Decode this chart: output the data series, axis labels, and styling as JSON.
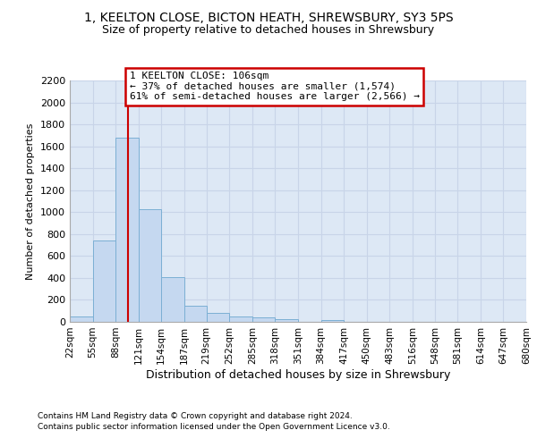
{
  "title_line1": "1, KEELTON CLOSE, BICTON HEATH, SHREWSBURY, SY3 5PS",
  "title_line2": "Size of property relative to detached houses in Shrewsbury",
  "xlabel": "Distribution of detached houses by size in Shrewsbury",
  "ylabel": "Number of detached properties",
  "footer_line1": "Contains HM Land Registry data © Crown copyright and database right 2024.",
  "footer_line2": "Contains public sector information licensed under the Open Government Licence v3.0.",
  "annotation_line1": "1 KEELTON CLOSE: 106sqm",
  "annotation_line2": "← 37% of detached houses are smaller (1,574)",
  "annotation_line3": "61% of semi-detached houses are larger (2,566) →",
  "bin_edges": [
    22,
    55,
    88,
    121,
    154,
    187,
    219,
    252,
    285,
    318,
    351,
    384,
    417,
    450,
    483,
    516,
    548,
    581,
    614,
    647,
    680
  ],
  "bar_heights": [
    50,
    740,
    1680,
    1030,
    405,
    150,
    80,
    45,
    40,
    25,
    0,
    20,
    0,
    0,
    0,
    0,
    0,
    0,
    0,
    0
  ],
  "bar_color": "#c5d8f0",
  "bar_edge_color": "#7bafd4",
  "vline_color": "#cc0000",
  "vline_x": 106,
  "ylim_max": 2200,
  "yticks": [
    0,
    200,
    400,
    600,
    800,
    1000,
    1200,
    1400,
    1600,
    1800,
    2000,
    2200
  ],
  "grid_color": "#c8d4e8",
  "bg_color": "#dde8f5",
  "annotation_box_edgecolor": "#cc0000",
  "title1_fontsize": 10,
  "title2_fontsize": 9,
  "ylabel_fontsize": 8,
  "xlabel_fontsize": 9,
  "tick_fontsize": 7.5,
  "ytick_fontsize": 8,
  "footer_fontsize": 6.5,
  "annot_fontsize": 8
}
